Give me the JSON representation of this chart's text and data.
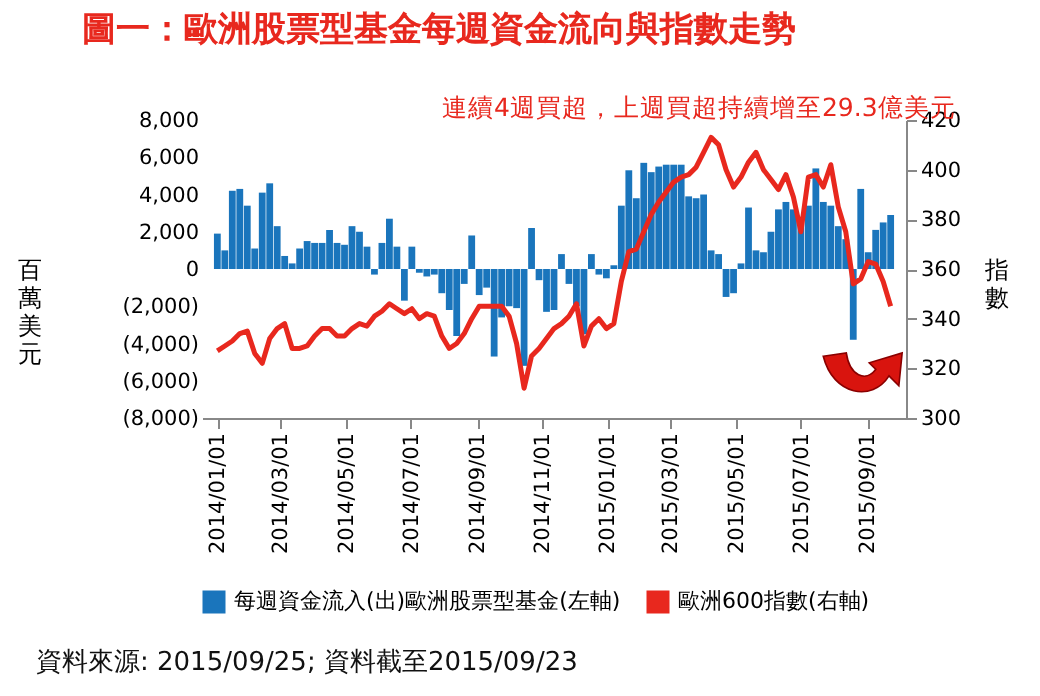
{
  "chart_data": {
    "type": "bar",
    "title": "圖一：歐洲股票型基金每週資金流向與指數走勢",
    "ylabel": "百萬美元",
    "y2label": "指數",
    "annotations": [
      "連續4週買超，上週買超持續增至29.3億美元",
      "資料來源: 2015/09/25; 資料截至2015/09/23"
    ],
    "x": [
      "2014-01-01",
      "2014-01-08",
      "2014-01-15",
      "2014-01-22",
      "2014-01-29",
      "2014-02-05",
      "2014-02-12",
      "2014-02-19",
      "2014-02-26",
      "2014-03-05",
      "2014-03-12",
      "2014-03-19",
      "2014-03-26",
      "2014-04-02",
      "2014-04-09",
      "2014-04-16",
      "2014-04-23",
      "2014-04-30",
      "2014-05-07",
      "2014-05-14",
      "2014-05-21",
      "2014-05-28",
      "2014-06-04",
      "2014-06-11",
      "2014-06-18",
      "2014-06-25",
      "2014-07-02",
      "2014-07-09",
      "2014-07-16",
      "2014-07-23",
      "2014-07-30",
      "2014-08-06",
      "2014-08-13",
      "2014-08-20",
      "2014-08-27",
      "2014-09-03",
      "2014-09-10",
      "2014-09-17",
      "2014-09-24",
      "2014-10-01",
      "2014-10-08",
      "2014-10-15",
      "2014-10-22",
      "2014-10-29",
      "2014-11-05",
      "2014-11-12",
      "2014-11-19",
      "2014-11-26",
      "2014-12-03",
      "2014-12-10",
      "2014-12-17",
      "2014-12-24",
      "2014-12-31",
      "2015-01-07",
      "2015-01-14",
      "2015-01-21",
      "2015-01-28",
      "2015-02-04",
      "2015-02-11",
      "2015-02-18",
      "2015-02-25",
      "2015-03-04",
      "2015-03-11",
      "2015-03-18",
      "2015-03-25",
      "2015-04-01",
      "2015-04-08",
      "2015-04-15",
      "2015-04-22",
      "2015-04-29",
      "2015-05-06",
      "2015-05-13",
      "2015-05-20",
      "2015-05-27",
      "2015-06-03",
      "2015-06-10",
      "2015-06-17",
      "2015-06-24",
      "2015-07-01",
      "2015-07-08",
      "2015-07-15",
      "2015-07-22",
      "2015-07-29",
      "2015-08-05",
      "2015-08-12",
      "2015-08-19",
      "2015-08-26",
      "2015-09-02",
      "2015-09-09",
      "2015-09-16",
      "2015-09-23"
    ],
    "series": [
      {
        "name": "每週資金流入(出)歐洲股票型基金(左軸)",
        "color": "#1a75bc",
        "values": [
          1900,
          1000,
          4200,
          4300,
          3400,
          1100,
          4100,
          4600,
          2300,
          700,
          300,
          1100,
          1500,
          1400,
          1400,
          2100,
          1400,
          1300,
          2300,
          2000,
          1200,
          -300,
          1400,
          2700,
          1200,
          -1700,
          1200,
          -200,
          -400,
          -300,
          -1300,
          -2200,
          -3600,
          -800,
          1800,
          -1400,
          -1000,
          -4700,
          -2600,
          -2000,
          -2100,
          -5200,
          2200,
          -600,
          -2300,
          -2200,
          800,
          -800,
          -2000,
          -3500,
          800,
          -300,
          -500,
          200,
          3400,
          5300,
          3800,
          5700,
          5200,
          5500,
          5600,
          5600,
          5600,
          3900,
          3800,
          4000,
          1000,
          800,
          -1500,
          -1300,
          300,
          3300,
          1000,
          900,
          2000,
          3200,
          3600,
          3200,
          2800,
          3400,
          5400,
          3600,
          3400,
          2300,
          1600,
          -3800,
          4300,
          900,
          2100,
          2500,
          2900
        ]
      },
      {
        "name": "歐洲600指數(右軸)",
        "type": "line",
        "axis": "y2",
        "color": "#e8281e",
        "values": [
          327,
          329,
          331,
          334,
          335,
          326,
          322,
          332,
          336,
          338,
          328,
          328,
          329,
          333,
          336,
          336,
          333,
          333,
          336,
          338,
          337,
          341,
          343,
          346,
          344,
          342,
          344,
          340,
          342,
          341,
          333,
          328,
          330,
          334,
          340,
          345,
          345,
          345,
          345,
          341,
          330,
          312,
          325,
          328,
          332,
          336,
          338,
          341,
          346,
          329,
          337,
          340,
          336,
          338,
          355,
          367,
          368,
          375,
          382,
          387,
          391,
          395,
          397,
          398,
          401,
          407,
          413,
          410,
          400,
          393,
          397,
          403,
          407,
          400,
          396,
          392,
          398,
          389,
          375,
          397,
          398,
          393,
          402,
          385,
          375,
          354,
          356,
          363,
          362,
          355,
          345
        ]
      }
    ],
    "xlim": [
      "2013-12-27",
      "2015-09-28"
    ],
    "xticks": [
      {
        "value": "2014-01-01",
        "label": "2014/01/01"
      },
      {
        "value": "2014-03-01",
        "label": "2014/03/01"
      },
      {
        "value": "2014-05-01",
        "label": "2014/05/01"
      },
      {
        "value": "2014-07-01",
        "label": "2014/07/01"
      },
      {
        "value": "2014-09-01",
        "label": "2014/09/01"
      },
      {
        "value": "2014-11-01",
        "label": "2014/11/01"
      },
      {
        "value": "2015-01-01",
        "label": "2015/01/01"
      },
      {
        "value": "2015-03-01",
        "label": "2015/03/01"
      },
      {
        "value": "2015-05-01",
        "label": "2015/05/01"
      },
      {
        "value": "2015-07-01",
        "label": "2015/07/01"
      },
      {
        "value": "2015-09-01",
        "label": "2015/09/01"
      }
    ],
    "ylim": [
      -8000,
      8000
    ],
    "yticks": [
      {
        "value": -8000,
        "label": "(8,000)"
      },
      {
        "value": -6000,
        "label": "(6,000)"
      },
      {
        "value": -4000,
        "label": "(4,000)"
      },
      {
        "value": -2000,
        "label": "(2,000)"
      },
      0,
      {
        "value": 2000,
        "label": "2,000"
      },
      {
        "value": 4000,
        "label": "4,000"
      },
      {
        "value": 6000,
        "label": "6,000"
      },
      {
        "value": 8000,
        "label": "8,000"
      }
    ],
    "y2lim": [
      300,
      420
    ],
    "y2ticks": [
      300,
      320,
      340,
      360,
      380,
      400,
      420
    ],
    "legend": "bottom"
  }
}
